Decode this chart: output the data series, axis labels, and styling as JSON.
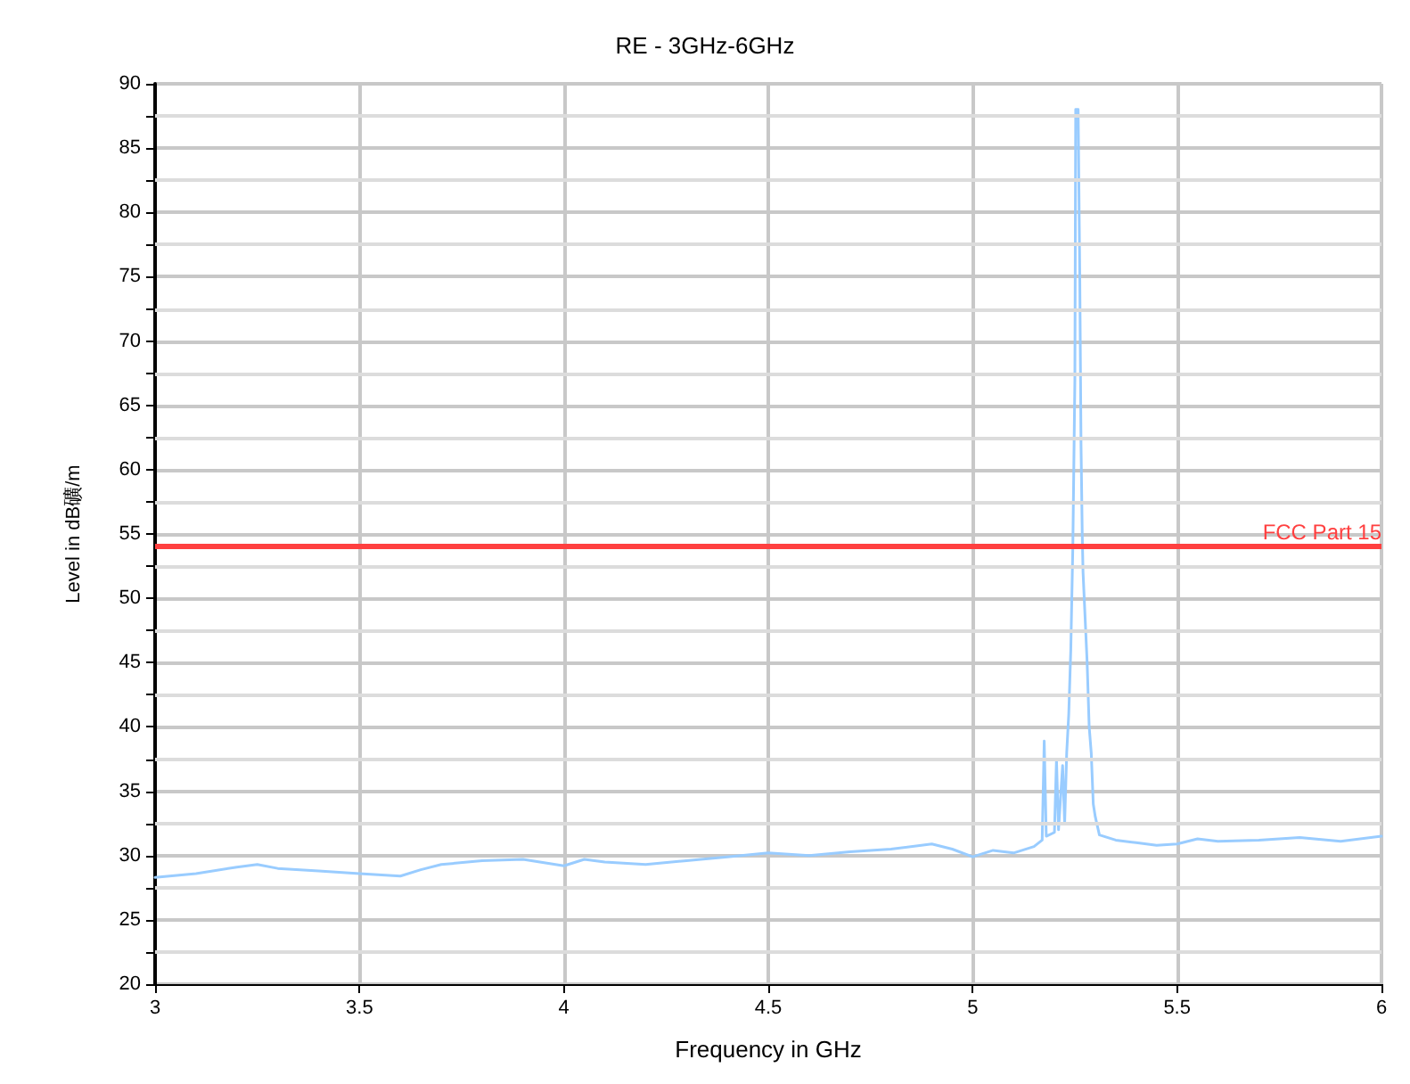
{
  "chart_data": {
    "type": "line",
    "title": "RE - 3GHz-6GHz",
    "xlabel": "Frequency in GHz",
    "ylabel": "Level in dB礦/m",
    "xlim": [
      3,
      6
    ],
    "xticks": [
      3,
      3.5,
      4,
      4.5,
      5,
      5.5,
      6
    ],
    "ylim": [
      20,
      90
    ],
    "yticks": [
      20,
      25,
      30,
      35,
      40,
      45,
      50,
      55,
      60,
      65,
      70,
      75,
      80,
      85,
      90
    ],
    "grid": true,
    "marker": "none",
    "line_style": "solid",
    "series": [
      {
        "color": "#99ccff",
        "x": [
          3.0,
          3.1,
          3.2,
          3.25,
          3.3,
          3.4,
          3.5,
          3.6,
          3.65,
          3.7,
          3.8,
          3.9,
          4.0,
          4.05,
          4.1,
          4.2,
          4.3,
          4.4,
          4.5,
          4.6,
          4.7,
          4.8,
          4.9,
          4.95,
          5.0,
          5.05,
          5.1,
          5.15,
          5.17,
          5.175,
          5.18,
          5.2,
          5.205,
          5.21,
          5.22,
          5.225,
          5.23,
          5.235,
          5.24,
          5.245,
          5.25,
          5.252,
          5.258,
          5.262,
          5.265,
          5.268,
          5.27,
          5.28,
          5.285,
          5.29,
          5.295,
          5.3,
          5.31,
          5.35,
          5.4,
          5.45,
          5.5,
          5.55,
          5.6,
          5.7,
          5.8,
          5.9,
          6.0
        ],
        "values": [
          28.3,
          28.6,
          29.1,
          29.3,
          29.0,
          28.8,
          28.6,
          28.4,
          28.9,
          29.3,
          29.6,
          29.7,
          29.2,
          29.7,
          29.5,
          29.3,
          29.6,
          29.9,
          30.2,
          30.0,
          30.3,
          30.5,
          30.9,
          30.5,
          29.9,
          30.4,
          30.2,
          30.7,
          31.2,
          38.9,
          31.5,
          31.8,
          37.5,
          32,
          37,
          32.5,
          38,
          41,
          46,
          54,
          67,
          88,
          88,
          75,
          62,
          55,
          52,
          45,
          40,
          38,
          34,
          33,
          31.6,
          31.2,
          31.0,
          30.8,
          30.9,
          31.3,
          31.1,
          31.2,
          31.4,
          31.1,
          31.5
        ]
      }
    ],
    "ref_lines": [
      {
        "axis": "y",
        "value": 54,
        "label": "FCC Part 15",
        "color": "#ff4040",
        "line_style": "solid"
      }
    ]
  }
}
